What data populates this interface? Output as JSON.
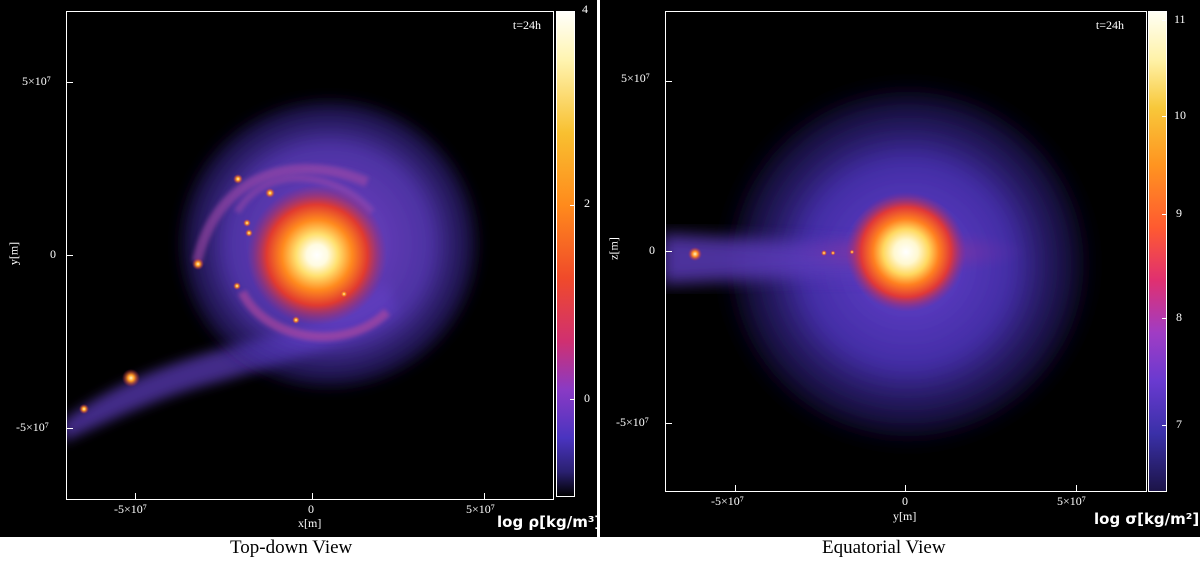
{
  "panels": {
    "left": {
      "time_label": "t=24h",
      "x_axis_label": "x[m]",
      "y_axis_label": "y[m]",
      "x_ticks": [
        "-5×10⁷",
        "0",
        "5×10⁷"
      ],
      "y_ticks": [
        "5×10⁷",
        "0",
        "-5×10⁷"
      ],
      "colorbar_ticks": [
        "4",
        "2",
        "0"
      ],
      "colorbar_label": "log ρ[kg/m³]",
      "caption": "Top-down View"
    },
    "right": {
      "time_label": "t=24h",
      "x_axis_label": "y[m]",
      "y_axis_label": "z[m]",
      "x_ticks": [
        "-5×10⁷",
        "0",
        "5×10⁷"
      ],
      "y_ticks": [
        "5×10⁷",
        "0",
        "-5×10⁷"
      ],
      "colorbar_ticks": [
        "11",
        "10",
        "9",
        "8",
        "7"
      ],
      "colorbar_label": "log σ[kg/m²]",
      "caption": "Equatorial View"
    }
  }
}
